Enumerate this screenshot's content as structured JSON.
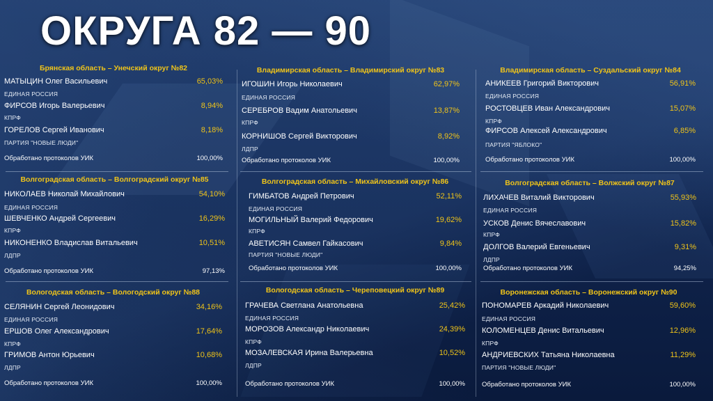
{
  "title": "ОКРУГА 82 — 90",
  "processed_label": "Обработано протоколов УИК",
  "districts": [
    {
      "header": "Брянская область – Унечский округ №82",
      "candidates": [
        {
          "name": "МАТЫЦИН Олег Васильевич",
          "percent": "65,03%",
          "party": "ЕДИНАЯ РОССИЯ"
        },
        {
          "name": "ФИРСОВ Игорь Валерьевич",
          "percent": "8,94%",
          "party": "КПРФ"
        },
        {
          "name": "ГОРЕЛОВ Сергей Иванович",
          "percent": "8,18%",
          "party": "ПАРТИЯ \"НОВЫЕ ЛЮДИ\""
        }
      ],
      "processed": "100,00%"
    },
    {
      "header": "Владимирская область – Владимирский округ №83",
      "candidates": [
        {
          "name": "ИГОШИН Игорь Николаевич",
          "percent": "62,97%",
          "party": "ЕДИНАЯ РОССИЯ"
        },
        {
          "name": "СЕРЕБРОВ Вадим Анатольевич",
          "percent": "13,87%",
          "party": "КПРФ"
        },
        {
          "name": "КОРНИШОВ Сергей Викторович",
          "percent": "8,92%",
          "party": "ЛДПР"
        }
      ],
      "processed": "100,00%"
    },
    {
      "header": "Владимирская область – Суздальский округ №84",
      "candidates": [
        {
          "name": "АНИКЕЕВ Григорий Викторович",
          "percent": "56,91%",
          "party": "ЕДИНАЯ РОССИЯ"
        },
        {
          "name": "РОСТОВЦЕВ Иван Александрович",
          "percent": "15,07%",
          "party": "КПРФ"
        },
        {
          "name": "ФИРСОВ Алексей Александрович",
          "percent": "6,85%",
          "party": "ПАРТИЯ \"ЯБЛОКО\""
        }
      ],
      "processed": "100,00%"
    },
    {
      "header": "Волгоградская область – Волгоградский округ №85",
      "candidates": [
        {
          "name": "НИКОЛАЕВ Николай Михайлович",
          "percent": "54,10%",
          "party": "ЕДИНАЯ РОССИЯ"
        },
        {
          "name": "ШЕВЧЕНКО Андрей Сергеевич",
          "percent": "16,29%",
          "party": "КПРФ"
        },
        {
          "name": "НИКОНЕНКО Владислав Витальевич",
          "percent": "10,51%",
          "party": "ЛДПР"
        }
      ],
      "processed": "97,13%"
    },
    {
      "header": "Волгоградская область – Михайловский округ №86",
      "candidates": [
        {
          "name": "ГИМБАТОВ Андрей Петрович",
          "percent": "52,11%",
          "party": "ЕДИНАЯ РОССИЯ"
        },
        {
          "name": "МОГИЛЬНЫЙ Валерий Федорович",
          "percent": "19,62%",
          "party": "КПРФ"
        },
        {
          "name": "АВЕТИСЯН Самвел Гайкасович",
          "percent": "9,84%",
          "party": "ПАРТИЯ \"НОВЫЕ ЛЮДИ\""
        }
      ],
      "processed": "100,00%"
    },
    {
      "header": "Волгоградская область – Волжский округ №87",
      "candidates": [
        {
          "name": "ЛИХАЧЕВ Виталий Викторович",
          "percent": "55,93%",
          "party": "ЕДИНАЯ РОССИЯ"
        },
        {
          "name": "УСКОВ Денис Вячеславович",
          "percent": "15,82%",
          "party": "КПРФ"
        },
        {
          "name": "ДОЛГОВ Валерий Евгеньевич",
          "percent": "9,31%",
          "party": "ЛДПР"
        }
      ],
      "processed": "94,25%"
    },
    {
      "header": "Вологодская область – Вологодский округ №88",
      "candidates": [
        {
          "name": "СЕЛЯНИН Сергей Леонидович",
          "percent": "34,16%",
          "party": "ЕДИНАЯ РОССИЯ"
        },
        {
          "name": "ЕРШОВ Олег Александрович",
          "percent": "17,64%",
          "party": "КПРФ"
        },
        {
          "name": "ГРИМОВ Антон Юрьевич",
          "percent": "10,68%",
          "party": "ЛДПР"
        }
      ],
      "processed": "100,00%"
    },
    {
      "header": "Вологодская область – Череповецкий округ №89",
      "candidates": [
        {
          "name": "ГРАЧЕВА Светлана Анатольевна",
          "percent": "25,42%",
          "party": "ЕДИНАЯ РОССИЯ"
        },
        {
          "name": "МОРОЗОВ Александр Николаевич",
          "percent": "24,39%",
          "party": "КПРФ"
        },
        {
          "name": "МОЗАЛЕВСКАЯ Ирина Валерьевна",
          "percent": "10,52%",
          "party": "ЛДПР"
        }
      ],
      "processed": "100,00%"
    },
    {
      "header": "Воронежская область – Воронежский округ №90",
      "candidates": [
        {
          "name": "ПОНОМАРЕВ Аркадий Николаевич",
          "percent": "59,60%",
          "party": "ЕДИНАЯ РОССИЯ"
        },
        {
          "name": "КОЛОМЕНЦЕВ Денис Витальевич",
          "percent": "12,96%",
          "party": "КПРФ"
        },
        {
          "name": "АНДРИЕВСКИХ Татьяна Николаевна",
          "percent": "11,29%",
          "party": "ПАРТИЯ \"НОВЫЕ ЛЮДИ\""
        }
      ],
      "processed": "100,00%"
    }
  ]
}
